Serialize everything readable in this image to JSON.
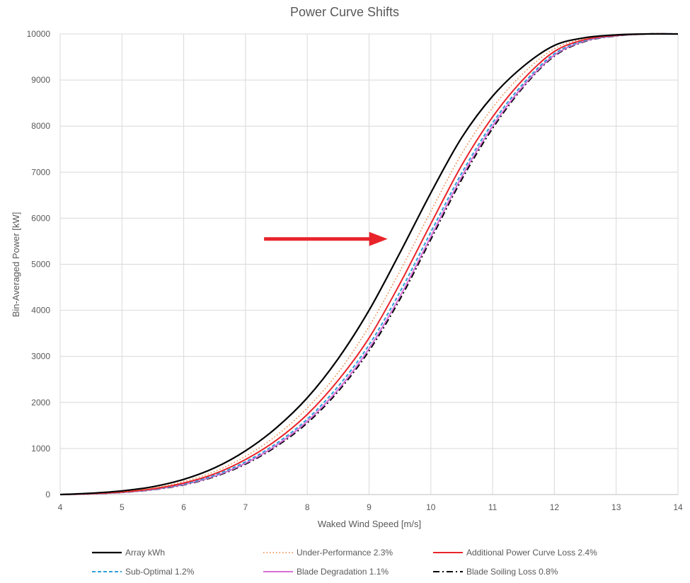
{
  "chart_data": {
    "type": "line",
    "title": "Power Curve Shifts",
    "xlabel": "Waked Wind Speed [m/s]",
    "ylabel": "Bin-Averaged Power [kW]",
    "xlim": [
      4,
      14
    ],
    "ylim": [
      0,
      10000
    ],
    "x_ticks": [
      "4",
      "5",
      "6",
      "7",
      "8",
      "9",
      "10",
      "11",
      "12",
      "13",
      "14"
    ],
    "y_ticks": [
      "0",
      "1000",
      "2000",
      "3000",
      "4000",
      "5000",
      "6000",
      "7000",
      "8000",
      "9000",
      "10000"
    ],
    "grid": true,
    "legend_position": "bottom",
    "annotations": [
      {
        "type": "arrow",
        "direction": "right",
        "from": [
          7.3,
          5550
        ],
        "to": [
          9.3,
          5550
        ],
        "color": "#e8242a"
      }
    ],
    "x": [
      4,
      4.5,
      5,
      5.5,
      6,
      6.5,
      7,
      7.5,
      8,
      8.5,
      9,
      9.5,
      10,
      10.5,
      11,
      11.5,
      12,
      12.5,
      13,
      13.5,
      14
    ],
    "series": [
      {
        "name": "Array kWh",
        "color": "#000000",
        "style": "solid",
        "values": [
          0,
          30,
          80,
          170,
          330,
          580,
          950,
          1450,
          2100,
          2950,
          4000,
          5250,
          6550,
          7750,
          8650,
          9300,
          9750,
          9920,
          9980,
          10000,
          10000
        ]
      },
      {
        "name": "Under-Performance 2.3%",
        "color": "#ed7d31",
        "style": "dotted",
        "values": [
          0,
          25,
          65,
          140,
          280,
          500,
          830,
          1280,
          1880,
          2650,
          3650,
          4850,
          6150,
          7400,
          8400,
          9150,
          9680,
          9900,
          9975,
          10000,
          10000
        ]
      },
      {
        "name": "Additional Power Curve Loss 2.4%",
        "color": "#e8242a",
        "style": "solid",
        "values": [
          0,
          20,
          55,
          125,
          250,
          450,
          760,
          1180,
          1740,
          2480,
          3400,
          4580,
          5880,
          7150,
          8200,
          9020,
          9620,
          9880,
          9970,
          10000,
          10000
        ]
      },
      {
        "name": "Sub-Optimal 1.2%",
        "color": "#2e9fd8",
        "style": "dashed",
        "values": [
          0,
          18,
          50,
          115,
          230,
          420,
          710,
          1110,
          1640,
          2350,
          3250,
          4400,
          5700,
          6980,
          8070,
          8930,
          9570,
          9860,
          9965,
          10000,
          10000
        ]
      },
      {
        "name": "Blade Degradation 1.1%",
        "color": "#d66fd6",
        "style": "solid",
        "values": [
          0,
          16,
          47,
          108,
          218,
          400,
          680,
          1070,
          1590,
          2280,
          3170,
          4300,
          5600,
          6900,
          8000,
          8880,
          9540,
          9850,
          9960,
          10000,
          10000
        ]
      },
      {
        "name": "Blade Soiling Loss 0.8%",
        "color": "#000000",
        "style": "dashdot",
        "values": [
          0,
          15,
          45,
          104,
          210,
          388,
          660,
          1045,
          1555,
          2240,
          3120,
          4240,
          5540,
          6840,
          7950,
          8850,
          9520,
          9840,
          9955,
          10000,
          10000
        ]
      }
    ]
  }
}
